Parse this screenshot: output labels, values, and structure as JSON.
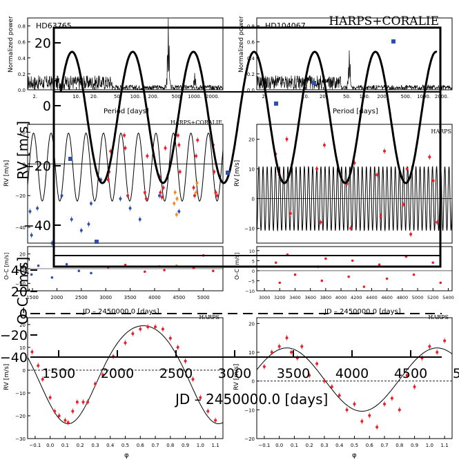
{
  "overlay": {
    "title": "HARPS+CORALIE",
    "rv_label": "RV [m/s]",
    "oc_label": "O–C [m/s]",
    "x_label": "JD – 2450000.0 [days]",
    "rv_ticks": [
      "20",
      "0",
      "−20",
      "−40"
    ],
    "oc_ticks": [
      "40",
      "20",
      "0",
      "−20",
      "−40"
    ],
    "x_ticks": [
      "1500",
      "2000",
      "2500",
      "3000",
      "3500",
      "4000",
      "4500",
      "5000"
    ]
  },
  "panels": {
    "left_periodogram": {
      "star": "HD63765",
      "ylabel": "Normalized power",
      "xlabel": "Period [days]",
      "yticks": [
        "0.0",
        "0.2",
        "0.4",
        "0.6",
        "0.8"
      ],
      "xticks": [
        "2.",
        "10.",
        "20.",
        "50.",
        "100.",
        "200.",
        "500.",
        "1000.",
        "2000."
      ]
    },
    "right_periodogram": {
      "star": "HD104067",
      "ylabel": "Normalized power",
      "xlabel": "Period [days]",
      "yticks": [
        "0.0",
        "0.2",
        "0.4",
        "0.6",
        "0.8"
      ],
      "xticks": [
        "2.",
        "10.",
        "20.",
        "50.",
        "100.",
        "200.",
        "500.",
        "1000.",
        "2000."
      ]
    },
    "left_rv": {
      "instrument": "HARPS+CORALIE",
      "ylabel": "RV [m/s]",
      "yticks": [
        "20",
        "0",
        "−20",
        "−40"
      ]
    },
    "right_rv": {
      "instrument": "HARPS",
      "ylabel": "RV [m/s]",
      "yticks": [
        "20",
        "10",
        "0",
        "−10"
      ]
    },
    "left_oc": {
      "ylabel": "O–C [m/s]",
      "yticks": [
        "20",
        "0",
        "−20"
      ],
      "xticks": [
        "1500",
        "2000",
        "2500",
        "3000",
        "3500",
        "4000",
        "4500",
        "5000"
      ],
      "xlabel": "JD – 2450000.0 [days]"
    },
    "right_oc": {
      "ylabel": "O–C [m/s]",
      "yticks": [
        "10",
        "5",
        "0",
        "−5",
        "−10"
      ],
      "xticks": [
        "3000",
        "3200",
        "3400",
        "3600",
        "3800",
        "4000",
        "4200",
        "4400",
        "4600",
        "4800",
        "5000",
        "5200",
        "5400"
      ],
      "xlabel": "JD – 2450000.0 [days]"
    },
    "left_phase": {
      "instrument": "HARPS",
      "ylabel": "RV [m/s]",
      "xlabel": "φ",
      "yticks": [
        "20",
        "10",
        "0",
        "−10",
        "−20",
        "−30"
      ],
      "xticks": [
        "−0.1",
        "0.0",
        "0.1",
        "0.2",
        "0.3",
        "0.4",
        "0.5",
        "0.6",
        "0.7",
        "0.8",
        "0.9",
        "1.0",
        "1.1"
      ]
    },
    "right_phase": {
      "instrument": "HARPS",
      "ylabel": "RV [m/s]",
      "xlabel": "φ",
      "yticks": [
        "20",
        "10",
        "0",
        "−10",
        "−20"
      ],
      "xticks": [
        "−0.1",
        "0.0",
        "0.1",
        "0.2",
        "0.3",
        "0.4",
        "0.5",
        "0.6",
        "0.7",
        "0.8",
        "0.9",
        "1.0",
        "1.1"
      ]
    }
  },
  "colors": {
    "harps": "#e8202a",
    "coralie": "#2f4fb0",
    "coralie98": "#f28a1e",
    "model": "#000000"
  },
  "chart_data": [
    {
      "type": "line",
      "name": "HD63765 periodogram",
      "xscale": "log",
      "xlim": [
        1.5,
        3000
      ],
      "ylim": [
        0,
        0.9
      ],
      "peaks": [
        {
          "period": 358,
          "power": 0.9
        },
        {
          "period": 1000,
          "power": 0.22
        }
      ]
    },
    {
      "type": "line",
      "name": "HD104067 periodogram",
      "xscale": "log",
      "xlim": [
        1.5,
        3000
      ],
      "ylim": [
        0,
        0.9
      ],
      "peaks": [
        {
          "period": 55,
          "power": 0.5
        }
      ]
    },
    {
      "type": "scatter",
      "name": "HD63765 RV vs time",
      "xlim": [
        1400,
        5400
      ],
      "ylim": [
        -50,
        25
      ],
      "model": {
        "period": 358,
        "amplitude": 21.5,
        "offset": -2
      },
      "series": [
        {
          "name": "HARPS",
          "x": [
            3050,
            3070,
            3100,
            3380,
            3400,
            3450,
            3800,
            3830,
            3850,
            4100,
            4120,
            4150,
            4180,
            4220,
            4480,
            4500,
            4520,
            4800,
            4820,
            4850,
            4880,
            5200,
            5220,
            5250,
            5280
          ],
          "y": [
            -10,
            -5,
            8,
            18,
            10,
            -20,
            -18,
            -22,
            5,
            -8,
            -18,
            -21,
            -15,
            10,
            18,
            12,
            -5,
            -15,
            -20,
            5,
            15,
            12,
            -5,
            -18,
            -20
          ]
        },
        {
          "name": "CORALIE",
          "x": [
            1450,
            1480,
            1600,
            1650,
            1900,
            2100,
            2300,
            2500,
            2650,
            2700,
            2900,
            3300,
            3500,
            3700,
            4100,
            4500
          ],
          "y": [
            -30,
            -45,
            -28,
            -40,
            -50,
            -20,
            -35,
            -42,
            -38,
            -25,
            -10,
            -22,
            -28,
            -35,
            -20,
            -30
          ]
        },
        {
          "name": "CORALIE98",
          "x": [
            4400,
            4420,
            4450,
            4460,
            4850,
            4870
          ],
          "y": [
            -25,
            -18,
            -32,
            -22,
            -18,
            -12
          ]
        }
      ]
    },
    {
      "type": "scatter",
      "name": "HD104067 RV vs time",
      "xlim": [
        2900,
        5500
      ],
      "ylim": [
        -15,
        25
      ],
      "model": {
        "period": 55,
        "amplitude": 10.8,
        "offset": 0
      },
      "series": [
        {
          "name": "HARPS",
          "x": [
            3150,
            3200,
            3300,
            3350,
            3700,
            3750,
            3800,
            4100,
            4150,
            4200,
            4500,
            4550,
            4600,
            4850,
            4900,
            4950,
            5200,
            5250,
            5300
          ],
          "y": [
            15,
            8,
            20,
            -5,
            10,
            -8,
            18,
            5,
            -10,
            12,
            8,
            -6,
            16,
            -2,
            10,
            -12,
            14,
            6,
            -8
          ]
        }
      ]
    },
    {
      "type": "scatter",
      "name": "HD63765 residuals",
      "ylim": [
        -30,
        30
      ],
      "xlim": [
        1400,
        5400
      ]
    },
    {
      "type": "scatter",
      "name": "HD104067 residuals",
      "ylim": [
        -10,
        12
      ],
      "xlim": [
        2900,
        5450
      ]
    },
    {
      "type": "scatter",
      "name": "HD63765 phase-folded",
      "xlim": [
        -0.15,
        1.15
      ],
      "ylim": [
        -30,
        23
      ],
      "model": {
        "amplitude": 21.5,
        "offset": -2,
        "min_phase": 0.12,
        "ecc_shape": 0.24
      },
      "series": [
        {
          "name": "HARPS",
          "x": [
            -0.12,
            -0.08,
            -0.05,
            0.0,
            0.03,
            0.06,
            0.1,
            0.12,
            0.15,
            0.18,
            0.22,
            0.25,
            0.3,
            0.35,
            0.42,
            0.5,
            0.55,
            0.6,
            0.65,
            0.7,
            0.75,
            0.8,
            0.85,
            0.9,
            0.95,
            1.0,
            1.05,
            1.1
          ],
          "y": [
            8,
            2,
            -4,
            -12,
            -18,
            -20,
            -22,
            -23,
            -18,
            -14,
            -14,
            -14,
            -6,
            -2,
            6,
            12,
            16,
            18,
            19,
            19,
            18,
            14,
            10,
            4,
            -4,
            -12,
            -18,
            -22
          ]
        }
      ]
    },
    {
      "type": "scatter",
      "name": "HD104067 phase-folded",
      "xlim": [
        -0.15,
        1.15
      ],
      "ylim": [
        -20,
        22
      ],
      "model": {
        "amplitude": 11,
        "offset": 0.5,
        "max_phase": 0.05
      },
      "series": [
        {
          "name": "HARPS",
          "x": [
            -0.1,
            -0.05,
            0.0,
            0.05,
            0.08,
            0.12,
            0.15,
            0.2,
            0.25,
            0.3,
            0.35,
            0.4,
            0.45,
            0.5,
            0.55,
            0.6,
            0.65,
            0.7,
            0.75,
            0.8,
            0.85,
            0.9,
            0.95,
            1.0,
            1.05,
            1.1
          ],
          "y": [
            5,
            10,
            12,
            15,
            10,
            8,
            12,
            2,
            6,
            0,
            -2,
            -5,
            -10,
            -8,
            -14,
            -12,
            -16,
            -8,
            -6,
            -10,
            2,
            -2,
            8,
            12,
            10,
            14
          ]
        }
      ]
    }
  ]
}
